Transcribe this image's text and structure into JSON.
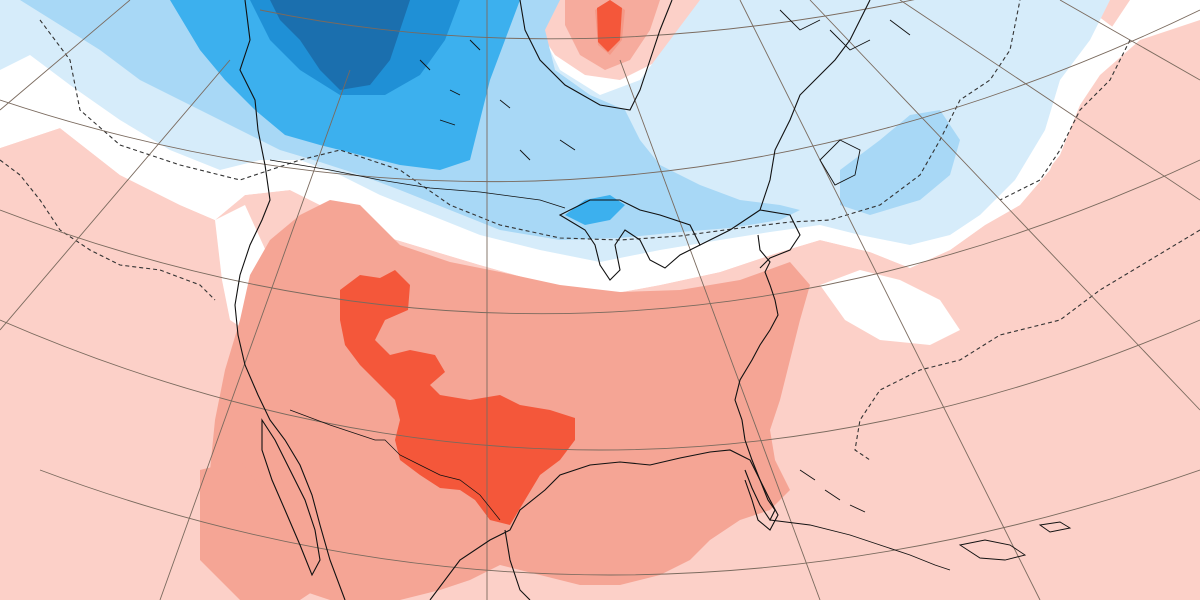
{
  "map": {
    "type": "temperature anomaly",
    "projection": "conic",
    "region": "North America",
    "graticule": true,
    "zero_contour_style": "dashed",
    "colors": {
      "background": "#ffffff",
      "warm_light": "#fcd0c8",
      "warm_medium": "#f5a595",
      "warm_strong": "#f4573a",
      "cold_light": "#d6ecfa",
      "cold_medium": "#a8d8f6",
      "cold_strong": "#3cb0ee",
      "cold_deep": "#1f90d6",
      "cold_extreme": "#1b6fae",
      "coastline": "#111111",
      "graticule": "#7a6a5e"
    },
    "anomaly_features": [
      {
        "name": "southwest-hot-core",
        "category": "strong-warm"
      },
      {
        "name": "hudson-bay-warm-spot",
        "category": "strong-warm"
      },
      {
        "name": "western-canada-cold-core",
        "category": "extreme-cold"
      },
      {
        "name": "great-lakes-cold-pocket",
        "category": "strong-cold"
      },
      {
        "name": "united-states-warm-region",
        "category": "medium-warm"
      },
      {
        "name": "eastern-canada-cold-region",
        "category": "light-cold"
      }
    ]
  }
}
